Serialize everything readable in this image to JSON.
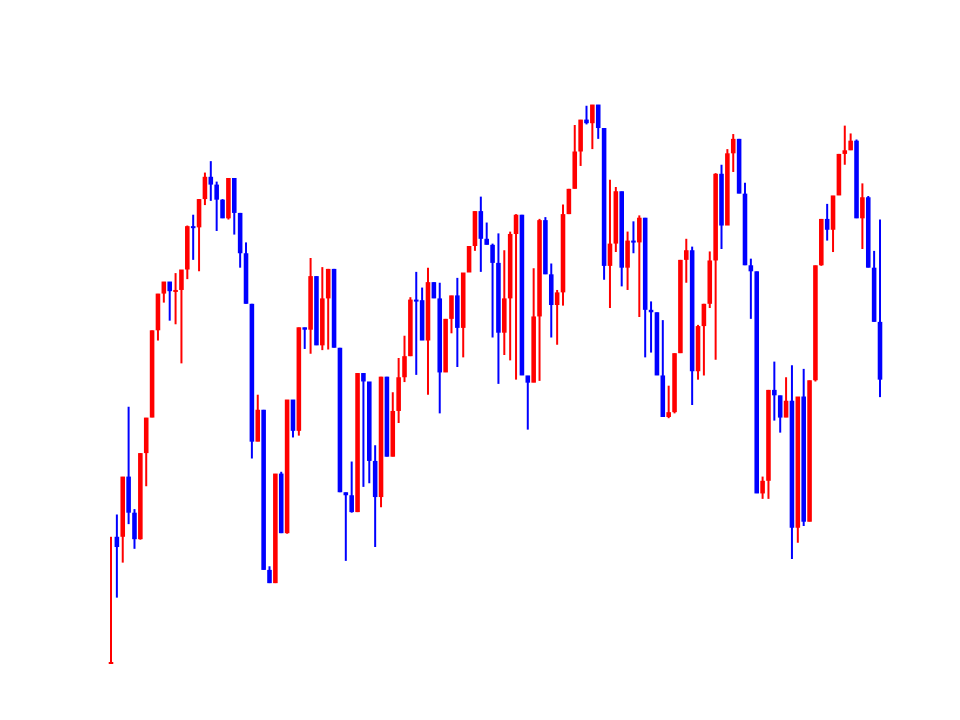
{
  "chart_data": {
    "type": "candlestick",
    "title": "",
    "xlabel": "",
    "ylabel": "",
    "axes_visible": false,
    "grid": false,
    "legend": "none",
    "ylim": [
      0,
      100
    ],
    "colors": {
      "up": "#ff0000",
      "down": "#0000ff"
    },
    "candles": [
      [
        0.0,
        0.0,
        20.8,
        0.0
      ],
      [
        20.8,
        10.7,
        24.5,
        19.1
      ],
      [
        20.8,
        16.5,
        30.8,
        30.8
      ],
      [
        30.8,
        22.9,
        42.4,
        24.8
      ],
      [
        24.8,
        18.8,
        25.4,
        20.4
      ],
      [
        20.4,
        20.3,
        34.7,
        34.7
      ],
      [
        34.7,
        29.2,
        40.6,
        40.6
      ],
      [
        40.6,
        40.6,
        55.1,
        55.1
      ],
      [
        55.1,
        53.4,
        61.2,
        61.2
      ],
      [
        61.2,
        59.7,
        63.2,
        63.2
      ],
      [
        63.2,
        56.7,
        63.2,
        61.6
      ],
      [
        61.6,
        56.1,
        64.6,
        61.8
      ],
      [
        61.8,
        49.6,
        63.2,
        65.2
      ],
      [
        65.2,
        63.6,
        72.5,
        72.4
      ],
      [
        72.4,
        66.8,
        74.3,
        72.2
      ],
      [
        72.2,
        64.9,
        75.8,
        76.9
      ],
      [
        76.9,
        75.9,
        81.3,
        80.6
      ],
      [
        80.6,
        76.6,
        83.2,
        79.3
      ],
      [
        79.3,
        71.6,
        79.8,
        76.8
      ],
      [
        76.8,
        73.9,
        76.9,
        73.7
      ],
      [
        73.7,
        73.5,
        80.4,
        80.4
      ],
      [
        80.4,
        71.0,
        80.4,
        74.6
      ],
      [
        74.6,
        65.5,
        74.6,
        67.9
      ],
      [
        67.9,
        59.9,
        69.7,
        59.5
      ],
      [
        59.5,
        33.8,
        59.5,
        36.6
      ],
      [
        36.6,
        36.6,
        44.4,
        41.9
      ],
      [
        41.9,
        15.3,
        41.9,
        15.3
      ],
      [
        15.3,
        13.1,
        15.9,
        13.1
      ],
      [
        13.1,
        13.1,
        31.3,
        31.3
      ],
      [
        31.3,
        21.7,
        31.6,
        21.4
      ],
      [
        21.4,
        21.3,
        43.6,
        43.6
      ],
      [
        43.6,
        37.3,
        43.4,
        38.4
      ],
      [
        38.4,
        37.6,
        45.8,
        55.6
      ],
      [
        55.6,
        52.0,
        55.6,
        55.2
      ],
      [
        55.2,
        51.2,
        67.1,
        64.1
      ],
      [
        64.1,
        60.4,
        63.6,
        52.6
      ],
      [
        52.6,
        51.8,
        65.6,
        60.4
      ],
      [
        60.4,
        51.9,
        62.3,
        65.3
      ],
      [
        65.3,
        65.3,
        61.6,
        52.2
      ],
      [
        52.2,
        38.4,
        52.2,
        28.2
      ],
      [
        28.2,
        16.8,
        28.2,
        27.7
      ],
      [
        27.7,
        24.8,
        33.3,
        24.9
      ],
      [
        24.9,
        24.9,
        48.0,
        48.0
      ],
      [
        48.0,
        29.1,
        48.0,
        46.6
      ],
      [
        46.6,
        29.7,
        46.6,
        33.4
      ],
      [
        33.4,
        19.1,
        36.0,
        27.4
      ],
      [
        27.4,
        25.7,
        47.4,
        47.4
      ],
      [
        47.4,
        39.3,
        46.3,
        34.1
      ],
      [
        34.1,
        34.1,
        44.8,
        41.7
      ],
      [
        41.7,
        39.7,
        50.5,
        47.3
      ],
      [
        47.3,
        46.5,
        54.2,
        50.8
      ],
      [
        50.8,
        50.8,
        60.6,
        60.2
      ],
      [
        60.2,
        47.7,
        64.8,
        60.1
      ],
      [
        60.1,
        53.5,
        62.2,
        53.4
      ],
      [
        53.4,
        44.4,
        65.5,
        63.1
      ],
      [
        63.1,
        61.2,
        60.8,
        60.4
      ],
      [
        60.4,
        41.3,
        63.0,
        48.1
      ],
      [
        48.1,
        48.1,
        56.6,
        57.0
      ],
      [
        57.0,
        54.6,
        59.4,
        60.9
      ],
      [
        60.9,
        49.0,
        63.8,
        55.5
      ],
      [
        55.5,
        50.6,
        62.6,
        64.7
      ],
      [
        64.7,
        64.7,
        68.2,
        69.1
      ],
      [
        69.1,
        68.3,
        74.9,
        74.9
      ],
      [
        74.9,
        64.8,
        77.3,
        70.3
      ],
      [
        70.3,
        69.5,
        73.0,
        69.3
      ],
      [
        69.3,
        53.9,
        69.5,
        66.3
      ],
      [
        66.3,
        46.2,
        71.2,
        54.7
      ],
      [
        54.7,
        51.0,
        68.4,
        60.4
      ],
      [
        60.4,
        50.1,
        71.5,
        71.1
      ],
      [
        71.1,
        46.9,
        74.4,
        74.3
      ],
      [
        74.3,
        47.8,
        62.9,
        47.6
      ],
      [
        47.6,
        38.6,
        47.6,
        46.4
      ],
      [
        46.4,
        52.1,
        65.4,
        57.4
      ],
      [
        57.4,
        46.7,
        73.6,
        73.4
      ],
      [
        73.4,
        66.4,
        73.9,
        64.4
      ],
      [
        64.4,
        53.9,
        66.2,
        59.3
      ],
      [
        59.3,
        52.7,
        61.8,
        61.4
      ],
      [
        61.4,
        59.2,
        76.0,
        74.4
      ],
      [
        74.4,
        74.8,
        78.6,
        78.6
      ],
      [
        78.6,
        78.7,
        89.2,
        84.8
      ],
      [
        84.8,
        82.4,
        88.1,
        90.1
      ],
      [
        90.1,
        89.3,
        92.4,
        89.5
      ],
      [
        89.5,
        85.2,
        91.5,
        92.6
      ],
      [
        92.6,
        86.9,
        91.0,
        88.7
      ],
      [
        88.7,
        63.5,
        82.9,
        65.8
      ],
      [
        65.8,
        58.8,
        80.1,
        69.5
      ],
      [
        69.5,
        68.1,
        78.9,
        78.2
      ],
      [
        78.2,
        62.4,
        75.2,
        65.5
      ],
      [
        65.5,
        61.8,
        71.5,
        70.0
      ],
      [
        70.0,
        67.9,
        73.2,
        69.7
      ],
      [
        69.7,
        57.3,
        74.2,
        73.8
      ],
      [
        73.8,
        50.6,
        71.1,
        58.5
      ],
      [
        58.5,
        51.4,
        59.9,
        58.1
      ],
      [
        58.1,
        49.6,
        57.1,
        47.6
      ],
      [
        47.6,
        46.6,
        56.8,
        40.7
      ],
      [
        40.7,
        40.5,
        45.9,
        41.5
      ],
      [
        41.5,
        41.3,
        44.5,
        51.3
      ],
      [
        51.3,
        53.0,
        65.7,
        66.8
      ],
      [
        66.8,
        63.0,
        70.3,
        68.4
      ],
      [
        68.4,
        42.7,
        69.0,
        48.3
      ],
      [
        48.3,
        46.9,
        56.0,
        55.8
      ],
      [
        55.8,
        47.6,
        57.8,
        59.5
      ],
      [
        59.5,
        58.8,
        68.2,
        66.7
      ],
      [
        66.7,
        50.2,
        81.2,
        81.1
      ],
      [
        81.1,
        68.6,
        82.6,
        72.5
      ],
      [
        72.5,
        72.7,
        85.2,
        84.5
      ],
      [
        84.5,
        81.4,
        87.7,
        86.9
      ],
      [
        86.9,
        82.2,
        85.5,
        77.8
      ],
      [
        77.8,
        69.1,
        79.6,
        65.9
      ],
      [
        65.9,
        57.0,
        67.0,
        64.9
      ],
      [
        64.9,
        29.4,
        64.9,
        28.0
      ],
      [
        28.0,
        27.1,
        30.8,
        30.1
      ],
      [
        30.1,
        27.1,
        42.6,
        45.2
      ],
      [
        45.2,
        40.1,
        49.9,
        44.3
      ],
      [
        44.3,
        38.1,
        40.5,
        40.6
      ],
      [
        40.6,
        42.5,
        47.3,
        43.4
      ],
      [
        43.4,
        17.1,
        49.3,
        22.3
      ],
      [
        22.3,
        19.8,
        41.5,
        44.1
      ],
      [
        44.1,
        22.6,
        48.7,
        23.3
      ],
      [
        23.3,
        23.3,
        44.5,
        46.8
      ],
      [
        46.8,
        46.6,
        58.1,
        65.9
      ],
      [
        65.9,
        65.8,
        71.9,
        73.6
      ],
      [
        73.6,
        70.0,
        76.1,
        71.8
      ],
      [
        71.8,
        68.1,
        72.9,
        77.5
      ],
      [
        77.5,
        77.5,
        84.2,
        84.4
      ],
      [
        84.4,
        82.6,
        89.1,
        85.0
      ],
      [
        85.0,
        85.0,
        87.8,
        86.6
      ],
      [
        86.6,
        75.8,
        86.8,
        73.7
      ],
      [
        73.7,
        68.6,
        79.5,
        77.2
      ],
      [
        77.2,
        67.1,
        77.4,
        65.5
      ],
      [
        65.5,
        58.8,
        68.3,
        56.5
      ],
      [
        56.5,
        44.0,
        73.5,
        46.9
      ]
    ]
  }
}
